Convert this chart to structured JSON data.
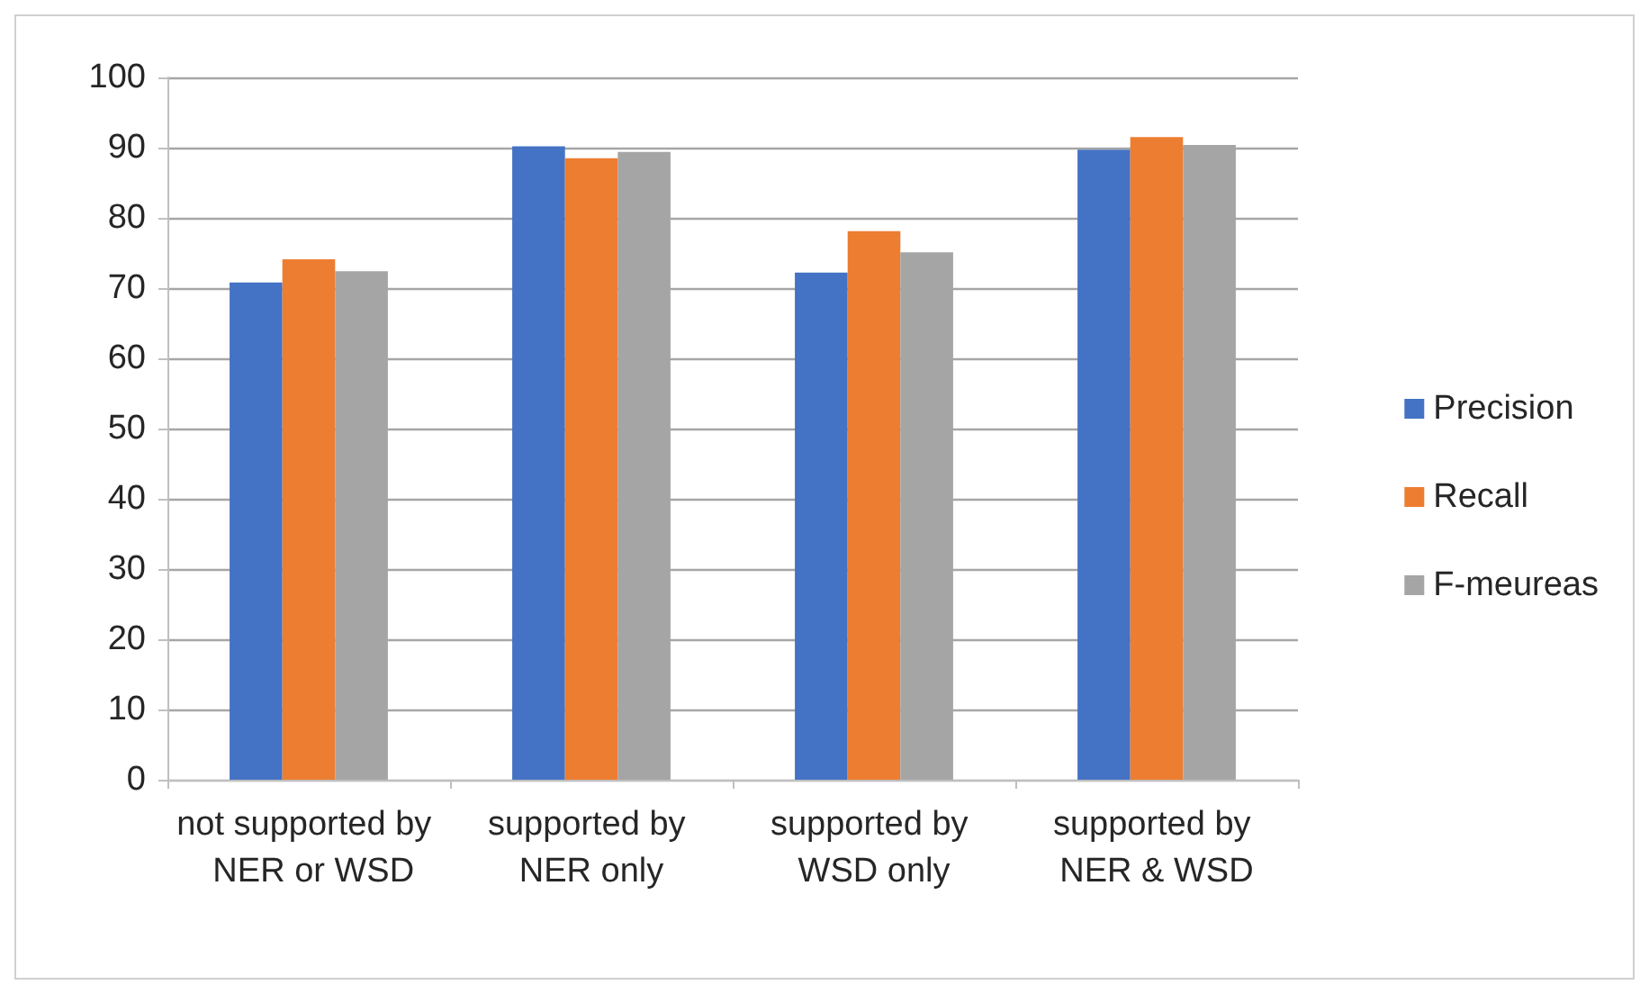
{
  "chart_data": {
    "type": "bar",
    "categories": [
      "not supported by  NER or WSD",
      "supported by NER only",
      "supported by WSD only",
      "supported by NER & WSD"
    ],
    "series": [
      {
        "name": "Precision",
        "color": "#4472c4",
        "values": [
          70.8,
          90.2,
          72.2,
          89.7
        ]
      },
      {
        "name": "Recall",
        "color": "#ed7d31",
        "values": [
          74.1,
          88.5,
          78.1,
          91.5
        ]
      },
      {
        "name": "F-meureas",
        "color": "#a5a5a5",
        "values": [
          72.4,
          89.4,
          75.1,
          90.4
        ]
      }
    ],
    "ylim": [
      0,
      100
    ],
    "yticks": [
      0,
      10,
      20,
      30,
      40,
      50,
      60,
      70,
      80,
      90,
      100
    ],
    "grid": "y",
    "legend": "right"
  }
}
